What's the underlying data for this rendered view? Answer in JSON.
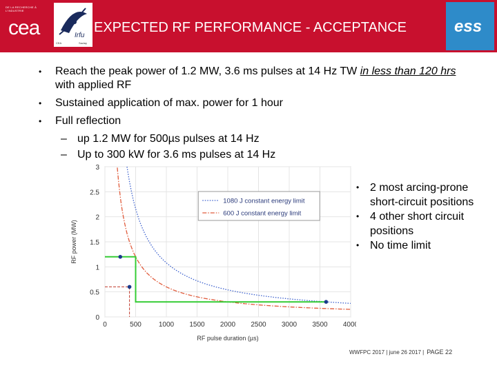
{
  "header": {
    "title": "EXPECTED RF PERFORMANCE - ACCEPTANCE",
    "cea_tagline": "DE LA RECHERCHE À L'INDUSTRIE",
    "cea_logo": "cea",
    "irfu_left": "CEA",
    "irfu_right": "Saclay",
    "irfu_logo": "Irfu",
    "ess_logo": "ess"
  },
  "bullets": [
    {
      "text_before": "Reach the peak power of 1.2 MW, 3.6 ms pulses at 14 Hz TW ",
      "underlined": "in less than 120 hrs ",
      "text_after": "with applied RF"
    },
    {
      "text": "Sustained application of  max. power for 1 hour"
    },
    {
      "text": "Full reflection"
    }
  ],
  "sub_bullets": [
    "up 1.2 MW for 500µs pulses at 14 Hz",
    "Up to 300 kW for 3.6 ms pulses at 14 Hz"
  ],
  "right_bullets": [
    "2 most arcing-prone short-circuit positions",
    "4 other short circuit positions",
    "No time limit"
  ],
  "chart_data": {
    "type": "line",
    "xlabel": "RF pulse duration (µs)",
    "ylabel": "RF power (MW)",
    "xlim": [
      0,
      4000
    ],
    "ylim": [
      0,
      3
    ],
    "xticks": [
      "0",
      "500",
      "1000",
      "1500",
      "2000",
      "2500",
      "3000",
      "3500",
      "4000"
    ],
    "yticks": [
      "0",
      "0.5",
      "1",
      "1.5",
      "2",
      "2.5",
      "3"
    ],
    "grid": true,
    "legend_position": "top-right",
    "series": [
      {
        "name": "1080 J constant energy limit",
        "kind": "curve",
        "energy_J": 1080,
        "color": "#3a5fcd",
        "style": "dotted"
      },
      {
        "name": "600 J constant energy limit",
        "kind": "curve",
        "energy_J": 600,
        "color": "#e05a3a",
        "style": "dashdot"
      },
      {
        "kind": "step",
        "color": "#33cc33",
        "x": [
          0,
          500,
          500,
          3600
        ],
        "y": [
          1.2,
          1.2,
          0.3,
          0.3
        ]
      }
    ],
    "points": [
      {
        "x": 250,
        "y": 1.2,
        "color": "#1a3a8c"
      },
      {
        "x": 400,
        "y": 0.6,
        "color": "#1a3a8c"
      },
      {
        "x": 3600,
        "y": 0.3,
        "color": "#1a3a8c"
      }
    ],
    "guides": [
      {
        "x": 400,
        "y": 0.6,
        "color": "#c0392b"
      }
    ]
  },
  "footer": {
    "text": "WWFPC 2017 | june 26 2017 |",
    "page": "PAGE 22"
  }
}
